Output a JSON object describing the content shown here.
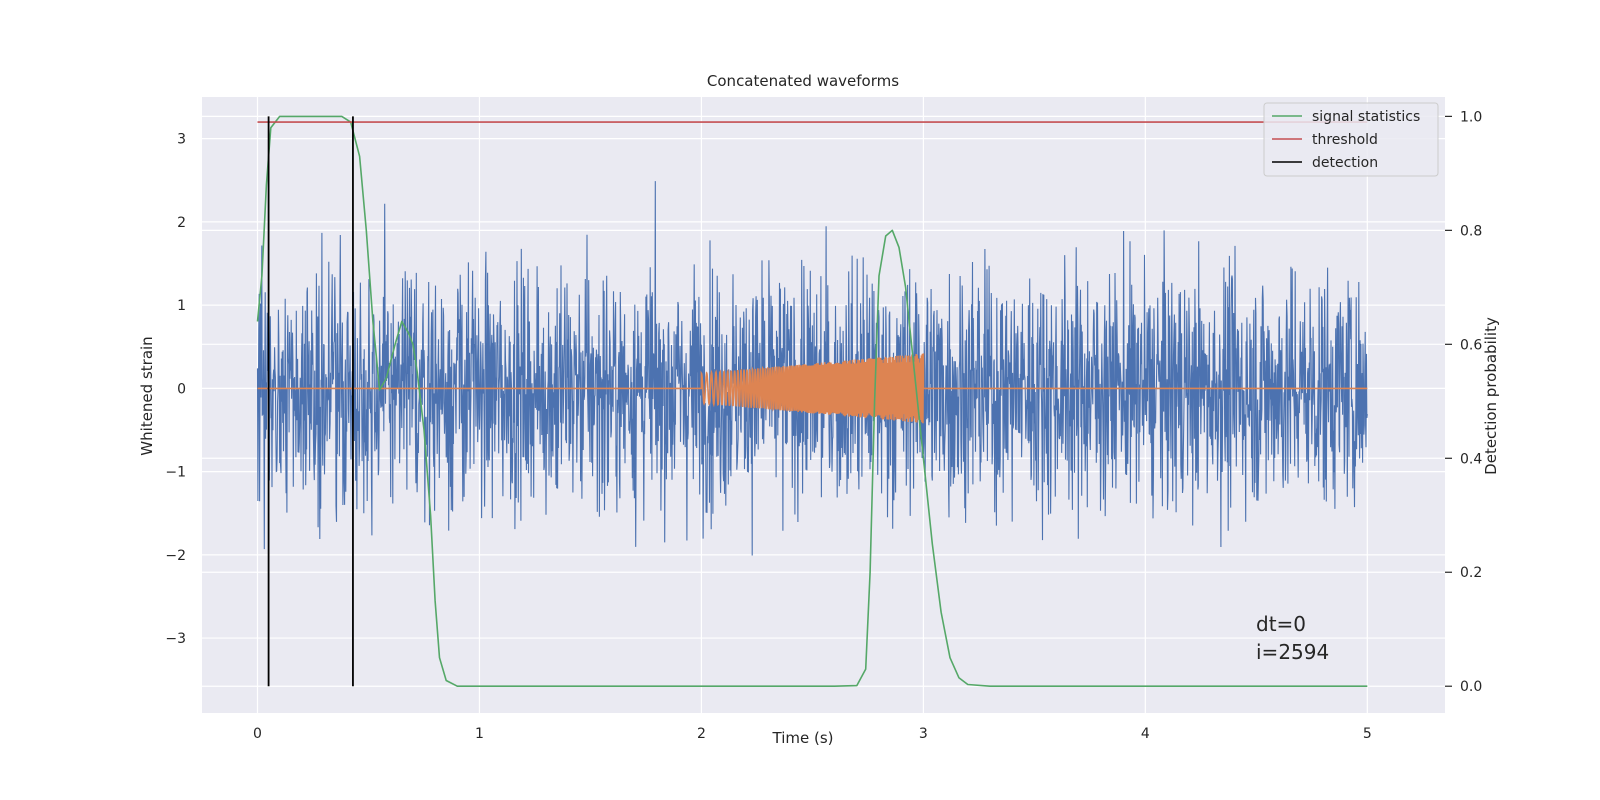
{
  "chart_data": {
    "type": "line",
    "title": "Concatenated waveforms",
    "xlabel": "Time (s)",
    "ylabel": "Whitened strain",
    "y2label": "Detection probability",
    "xlim": [
      -0.25,
      5.35
    ],
    "ylim": [
      -3.9,
      3.5
    ],
    "y2lim": [
      -0.047,
      1.034
    ],
    "xticks": [
      0,
      1,
      2,
      3,
      4,
      5
    ],
    "yticks": [
      -3,
      -2,
      -1,
      0,
      1,
      2,
      3
    ],
    "y2ticks": [
      0.0,
      0.2,
      0.4,
      0.6,
      0.8,
      1.0
    ],
    "xtick_labels": [
      "0",
      "1",
      "2",
      "3",
      "4",
      "5"
    ],
    "ytick_labels": [
      "−3",
      "−2",
      "−1",
      "0",
      "1",
      "2",
      "3"
    ],
    "y2tick_labels": [
      "0.0",
      "0.2",
      "0.4",
      "0.6",
      "0.8",
      "1.0"
    ],
    "colors": {
      "strain": "#4c72b0",
      "template": "#dd8452",
      "signal_statistics": "#55a868",
      "threshold": "#c44e52",
      "detection": "#000000",
      "plot_bg": "#eaeaf2",
      "grid": "#ffffff"
    },
    "series": [
      {
        "name": "whitened strain",
        "axis": "left",
        "x_range": [
          0,
          5
        ],
        "envelope": 1.0,
        "peak": 3.2
      },
      {
        "name": "template",
        "axis": "left",
        "x_range": [
          0,
          5
        ],
        "chirp": {
          "t_start": 2.0,
          "t_end": 3.0,
          "amp_start": 0.18,
          "amp_end": 0.42
        }
      },
      {
        "name": "signal statistics",
        "axis": "right",
        "points": [
          [
            0.0,
            0.64
          ],
          [
            0.02,
            0.72
          ],
          [
            0.04,
            0.88
          ],
          [
            0.06,
            0.98
          ],
          [
            0.1,
            1.0
          ],
          [
            0.2,
            1.0
          ],
          [
            0.3,
            1.0
          ],
          [
            0.38,
            1.0
          ],
          [
            0.42,
            0.99
          ],
          [
            0.46,
            0.93
          ],
          [
            0.49,
            0.8
          ],
          [
            0.52,
            0.64
          ],
          [
            0.55,
            0.52
          ],
          [
            0.58,
            0.54
          ],
          [
            0.62,
            0.6
          ],
          [
            0.65,
            0.64
          ],
          [
            0.68,
            0.62
          ],
          [
            0.7,
            0.6
          ],
          [
            0.72,
            0.55
          ],
          [
            0.75,
            0.45
          ],
          [
            0.78,
            0.3
          ],
          [
            0.8,
            0.15
          ],
          [
            0.82,
            0.05
          ],
          [
            0.85,
            0.01
          ],
          [
            0.9,
            0.0
          ],
          [
            1.2,
            0.0
          ],
          [
            2.0,
            0.0
          ],
          [
            2.6,
            0.0
          ],
          [
            2.7,
            0.001
          ],
          [
            2.74,
            0.03
          ],
          [
            2.76,
            0.2
          ],
          [
            2.78,
            0.5
          ],
          [
            2.8,
            0.72
          ],
          [
            2.83,
            0.79
          ],
          [
            2.86,
            0.8
          ],
          [
            2.89,
            0.77
          ],
          [
            2.92,
            0.7
          ],
          [
            2.96,
            0.55
          ],
          [
            3.0,
            0.4
          ],
          [
            3.04,
            0.25
          ],
          [
            3.08,
            0.13
          ],
          [
            3.12,
            0.05
          ],
          [
            3.16,
            0.015
          ],
          [
            3.2,
            0.003
          ],
          [
            3.3,
            0.0
          ],
          [
            4.0,
            0.0
          ],
          [
            5.0,
            0.0
          ]
        ]
      },
      {
        "name": "threshold",
        "axis": "right",
        "points": [
          [
            0,
            0.99
          ],
          [
            5,
            0.99
          ]
        ]
      },
      {
        "name": "detection",
        "axis": "right",
        "x_values": [
          0.05,
          0.43
        ],
        "y_range": [
          0.0,
          1.0
        ]
      }
    ],
    "legend": {
      "position": "top-right",
      "entries": [
        "signal statistics",
        "threshold",
        "detection"
      ]
    },
    "annotations": [
      "dt=0",
      "i=2594"
    ]
  }
}
